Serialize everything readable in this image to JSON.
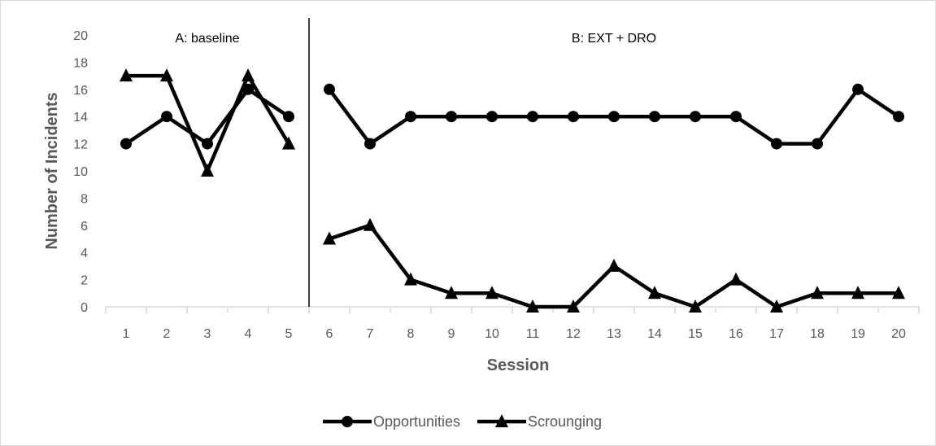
{
  "chart_data": {
    "type": "line",
    "title": "",
    "xlabel": "Session",
    "ylabel": "Number of Incidents",
    "categories": [
      "1",
      "2",
      "3",
      "4",
      "5",
      "6",
      "7",
      "8",
      "9",
      "10",
      "11",
      "12",
      "13",
      "14",
      "15",
      "16",
      "17",
      "18",
      "19",
      "20"
    ],
    "ylim": [
      0,
      20
    ],
    "yticks": [
      0,
      2,
      4,
      6,
      8,
      10,
      12,
      14,
      16,
      18,
      20
    ],
    "grid": false,
    "legend_position": "bottom",
    "phase_change_after": "5",
    "phases": [
      {
        "label": "A: baseline"
      },
      {
        "label": "B: EXT + DRO"
      }
    ],
    "series": [
      {
        "name": "Opportunities",
        "marker": "circle",
        "color": "#000000",
        "phase_values": [
          [
            12,
            14,
            12,
            16,
            14
          ],
          [
            16,
            12,
            14,
            14,
            14,
            14,
            14,
            14,
            14,
            14,
            14,
            12,
            12,
            16,
            14
          ]
        ]
      },
      {
        "name": "Scrounging",
        "marker": "triangle",
        "color": "#000000",
        "phase_values": [
          [
            17,
            17,
            10,
            17,
            12
          ],
          [
            5,
            6,
            2,
            1,
            1,
            0,
            0,
            3,
            1,
            0,
            2,
            0,
            1,
            1,
            1
          ]
        ]
      }
    ]
  },
  "colors": {
    "axis": "#d9d9d9",
    "line": "#000000",
    "text": "#595959"
  }
}
